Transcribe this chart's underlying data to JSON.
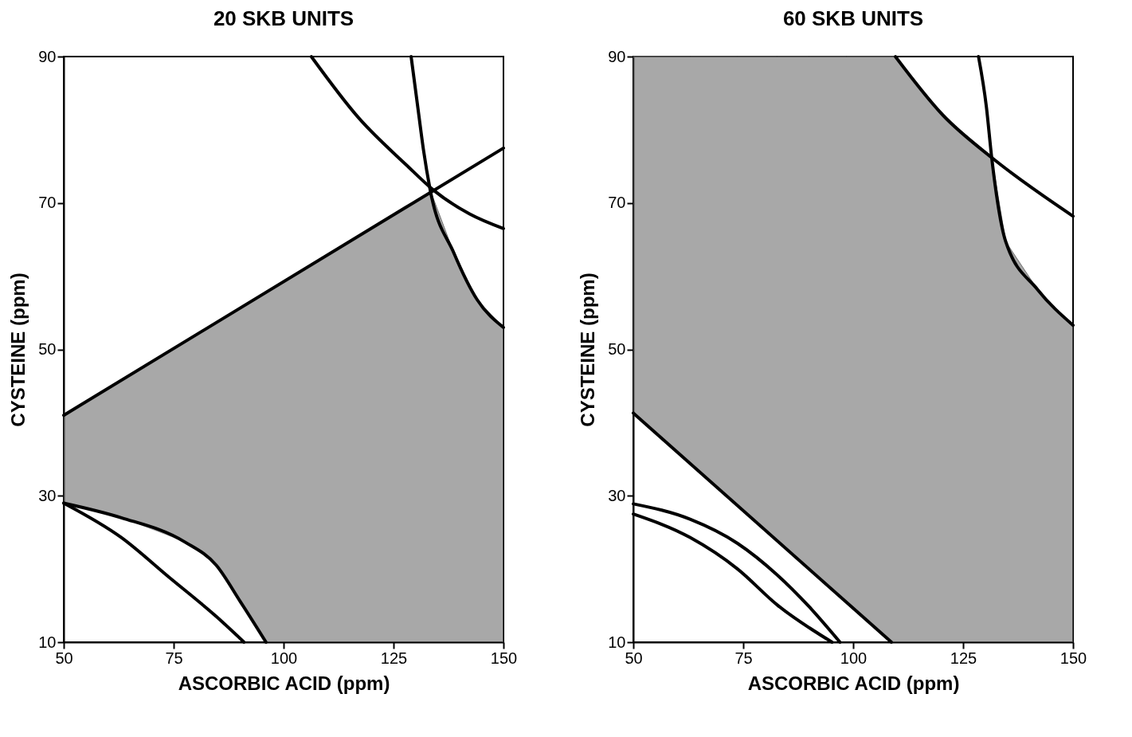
{
  "chart_data": [
    {
      "type": "line",
      "title": "20 SKB UNITS",
      "xlabel": "ASCORBIC ACID (ppm)",
      "ylabel": "CYSTEINE (ppm)",
      "xlim": [
        50,
        150
      ],
      "ylim": [
        10,
        90
      ],
      "xticks": [
        50,
        75,
        100,
        125,
        150
      ],
      "yticks": [
        10,
        30,
        50,
        70,
        90
      ],
      "series": [
        {
          "color": "#6e6e6e",
          "x": [
            50,
            63,
            77.5,
            85,
            90,
            96,
            110,
            125,
            133.5,
            138.7,
            144,
            150
          ],
          "values": [
            41,
            45.7,
            51,
            53.8,
            55.6,
            57.8,
            62.9,
            68.4,
            71.5,
            63.2,
            56.8,
            53
          ],
          "upper": [
            41,
            45.7,
            51,
            53.8,
            55.6,
            57.8,
            62.9,
            68.4,
            71.5,
            63.2,
            56.8,
            53
          ],
          "lower": [
            29,
            27,
            23.7,
            20.5,
            15.6,
            10,
            10,
            10,
            10,
            10,
            10,
            10
          ]
        },
        {
          "color": "#000000",
          "x": [
            50,
            150
          ],
          "values": [
            41,
            77.5
          ]
        },
        {
          "color": "#000000",
          "x": [
            129,
            130.6,
            131.8,
            133.3,
            138.7,
            144,
            150
          ],
          "values": [
            90,
            82.7,
            77.3,
            71.9,
            63.2,
            56.8,
            53
          ]
        },
        {
          "color": "#000000",
          "x": [
            106.3,
            117.1,
            127.9,
            134.2,
            142.3,
            150
          ],
          "values": [
            90,
            81.6,
            75.2,
            71.7,
            68.5,
            66.5
          ]
        },
        {
          "color": "#000000",
          "x": [
            50,
            63.1,
            77.5,
            84.7,
            90.1,
            96
          ],
          "values": [
            29,
            27,
            23.7,
            20.5,
            15.6,
            10
          ]
        },
        {
          "color": "#000000",
          "x": [
            50,
            63.1,
            73.9,
            84.7,
            91
          ],
          "values": [
            29,
            24.3,
            18.9,
            13.5,
            10
          ]
        }
      ]
    },
    {
      "type": "line",
      "title": "60 SKB UNITS",
      "xlabel": "ASCORBIC ACID (ppm)",
      "ylabel": "CYSTEINE (ppm)",
      "xlim": [
        50,
        150
      ],
      "ylim": [
        10,
        90
      ],
      "xticks": [
        50,
        75,
        100,
        125,
        150
      ],
      "yticks": [
        10,
        30,
        50,
        70,
        90
      ],
      "series": [
        {
          "color": "#6e6e6e",
          "x": [
            50,
            62.9,
            73.7,
            82.7,
            89.9,
            98.5,
            108.7,
            109.6,
            120.4,
            131.5,
            134.7,
            141.9,
            150
          ],
          "values": [
            90,
            90,
            90,
            90,
            90,
            90,
            90,
            90,
            82,
            76.2,
            64.7,
            58.2,
            53.3
          ],
          "upper": [
            90,
            90,
            90,
            90,
            90,
            90,
            90,
            90,
            82,
            76.2,
            64.7,
            58.2,
            53.3
          ],
          "lower": [
            41.3,
            34.4,
            28.7,
            23.9,
            20,
            15.4,
            10,
            10,
            10,
            10,
            10,
            10,
            10
          ]
        },
        {
          "color": "#000000",
          "x": [
            50,
            108.7
          ],
          "values": [
            41.3,
            10
          ]
        },
        {
          "color": "#000000",
          "x": [
            109.6,
            120.4,
            131.5,
            150
          ],
          "values": [
            90,
            82,
            76.2,
            68.2
          ]
        },
        {
          "color": "#000000",
          "x": [
            128.5,
            130.3,
            131.5,
            134.7,
            141.9,
            150
          ],
          "values": [
            90,
            83.1,
            76.2,
            64.7,
            58.2,
            53.3
          ]
        },
        {
          "color": "#000000",
          "x": [
            50,
            62.9,
            73.7,
            82.7,
            89.9,
            97
          ],
          "values": [
            28.9,
            26.8,
            23.5,
            19.2,
            14.9,
            10
          ]
        },
        {
          "color": "#000000",
          "x": [
            50,
            62.9,
            73.7,
            82.7,
            95.2
          ],
          "values": [
            27.5,
            24.3,
            20,
            15.1,
            10
          ]
        }
      ]
    }
  ]
}
